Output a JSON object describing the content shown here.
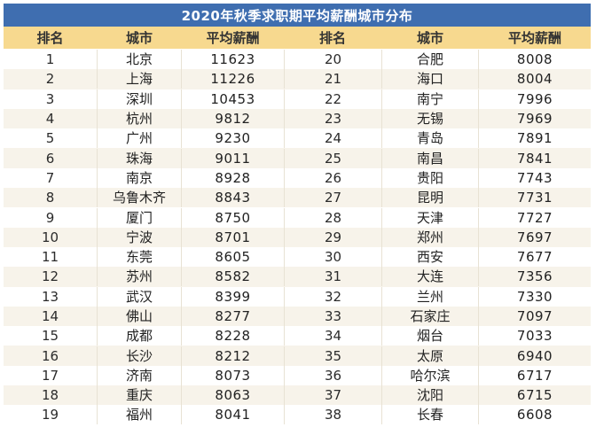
{
  "title": "2020年秋季求职期平均薪酬城市分布",
  "headers": {
    "rank": "排名",
    "city": "城市",
    "salary": "平均薪酬",
    "rank2": "排名",
    "city2": "城市",
    "salary2": "平均薪酬"
  },
  "colors": {
    "title_bg": "#3f6eb0",
    "header_bg": "#f7d98f",
    "row_alt_bg": "#f7f3ea"
  },
  "rows": [
    {
      "left": {
        "rank": "1",
        "city": "北京",
        "salary": "11623"
      },
      "right": {
        "rank": "20",
        "city": "合肥",
        "salary": "8008"
      }
    },
    {
      "left": {
        "rank": "2",
        "city": "上海",
        "salary": "11226"
      },
      "right": {
        "rank": "21",
        "city": "海口",
        "salary": "8004"
      }
    },
    {
      "left": {
        "rank": "3",
        "city": "深圳",
        "salary": "10453"
      },
      "right": {
        "rank": "22",
        "city": "南宁",
        "salary": "7996"
      }
    },
    {
      "left": {
        "rank": "4",
        "city": "杭州",
        "salary": "9812"
      },
      "right": {
        "rank": "23",
        "city": "无锡",
        "salary": "7969"
      }
    },
    {
      "left": {
        "rank": "5",
        "city": "广州",
        "salary": "9230"
      },
      "right": {
        "rank": "24",
        "city": "青岛",
        "salary": "7891"
      }
    },
    {
      "left": {
        "rank": "6",
        "city": "珠海",
        "salary": "9011"
      },
      "right": {
        "rank": "25",
        "city": "南昌",
        "salary": "7841"
      }
    },
    {
      "left": {
        "rank": "7",
        "city": "南京",
        "salary": "8928"
      },
      "right": {
        "rank": "26",
        "city": "贵阳",
        "salary": "7743"
      }
    },
    {
      "left": {
        "rank": "8",
        "city": "乌鲁木齐",
        "salary": "8843"
      },
      "right": {
        "rank": "27",
        "city": "昆明",
        "salary": "7731"
      }
    },
    {
      "left": {
        "rank": "9",
        "city": "厦门",
        "salary": "8750"
      },
      "right": {
        "rank": "28",
        "city": "天津",
        "salary": "7727"
      }
    },
    {
      "left": {
        "rank": "10",
        "city": "宁波",
        "salary": "8701"
      },
      "right": {
        "rank": "29",
        "city": "郑州",
        "salary": "7697"
      }
    },
    {
      "left": {
        "rank": "11",
        "city": "东莞",
        "salary": "8605"
      },
      "right": {
        "rank": "30",
        "city": "西安",
        "salary": "7677"
      }
    },
    {
      "left": {
        "rank": "12",
        "city": "苏州",
        "salary": "8582"
      },
      "right": {
        "rank": "31",
        "city": "大连",
        "salary": "7356"
      }
    },
    {
      "left": {
        "rank": "13",
        "city": "武汉",
        "salary": "8399"
      },
      "right": {
        "rank": "32",
        "city": "兰州",
        "salary": "7330"
      }
    },
    {
      "left": {
        "rank": "14",
        "city": "佛山",
        "salary": "8277"
      },
      "right": {
        "rank": "33",
        "city": "石家庄",
        "salary": "7097"
      }
    },
    {
      "left": {
        "rank": "15",
        "city": "成都",
        "salary": "8228"
      },
      "right": {
        "rank": "34",
        "city": "烟台",
        "salary": "7033"
      }
    },
    {
      "left": {
        "rank": "16",
        "city": "长沙",
        "salary": "8212"
      },
      "right": {
        "rank": "35",
        "city": "太原",
        "salary": "6940"
      }
    },
    {
      "left": {
        "rank": "17",
        "city": "济南",
        "salary": "8073"
      },
      "right": {
        "rank": "36",
        "city": "哈尔滨",
        "salary": "6717"
      }
    },
    {
      "left": {
        "rank": "18",
        "city": "重庆",
        "salary": "8063"
      },
      "right": {
        "rank": "37",
        "city": "沈阳",
        "salary": "6715"
      }
    },
    {
      "left": {
        "rank": "19",
        "city": "福州",
        "salary": "8041"
      },
      "right": {
        "rank": "38",
        "city": "长春",
        "salary": "6608"
      }
    }
  ]
}
